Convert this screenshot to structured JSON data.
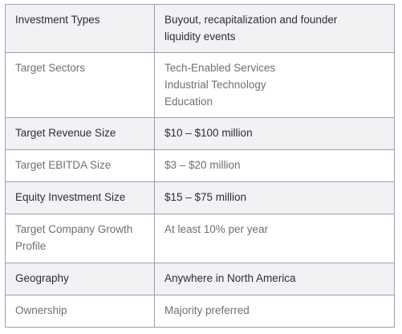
{
  "rows": [
    {
      "label": "Investment Types",
      "value_lines": [
        "Buyout, recapitalization and founder",
        "liquidity events"
      ],
      "shade": "dark"
    },
    {
      "label": "Target Sectors",
      "value_lines": [
        "Tech-Enabled Services",
        "Industrial Technology",
        "Education"
      ],
      "shade": "light"
    },
    {
      "label": "Target Revenue Size",
      "value_lines": [
        "$10 – $100 million"
      ],
      "shade": "dark"
    },
    {
      "label": "Target EBITDA Size",
      "value_lines": [
        "$3 – $20 million"
      ],
      "shade": "light"
    },
    {
      "label": "Equity Investment Size",
      "value_lines": [
        "$15 – $75 million"
      ],
      "shade": "dark"
    },
    {
      "label": "Target Company Growth Profile",
      "value_lines": [
        "At least 10% per year"
      ],
      "shade": "light"
    },
    {
      "label": "Geography",
      "value_lines": [
        "Anywhere in North America"
      ],
      "shade": "dark"
    },
    {
      "label": "Ownership",
      "value_lines": [
        "Majority preferred"
      ],
      "shade": "light"
    }
  ]
}
